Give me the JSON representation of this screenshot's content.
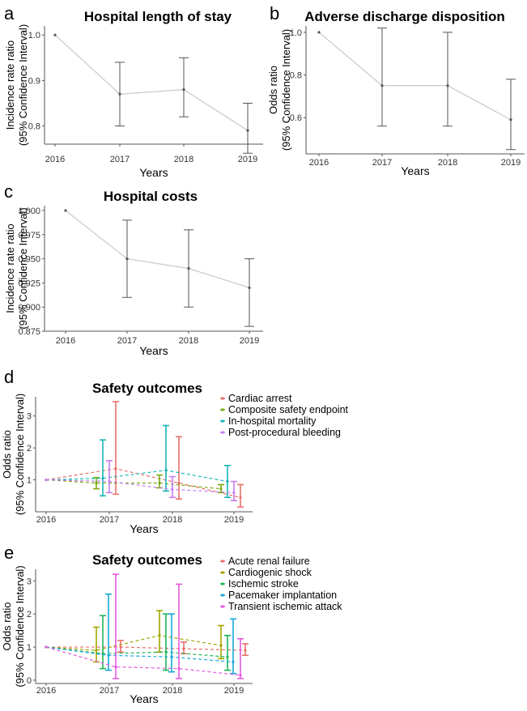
{
  "chart_data": [
    {
      "panel": "a",
      "type": "line",
      "title": "Hospital length of stay",
      "xlabel": "Years",
      "ylabel": [
        "Incidence rate ratio",
        "(95% Confidence Interval)"
      ],
      "categories": [
        "2016",
        "2017",
        "2018",
        "2019"
      ],
      "ylim": [
        0.76,
        1.02
      ],
      "yticks": [
        0.8,
        0.9,
        1.0
      ],
      "ytick_labels": [
        "0.8",
        "0.9",
        "1.0"
      ],
      "series": [
        {
          "values": [
            1.0,
            0.87,
            0.88,
            0.79
          ],
          "lower": [
            null,
            0.8,
            0.82,
            0.74
          ],
          "upper": [
            null,
            0.94,
            0.95,
            0.85
          ],
          "color": "#555555",
          "line_color": "#c8c8c8",
          "dashed": false
        }
      ]
    },
    {
      "panel": "b",
      "type": "line",
      "title": "Adverse discharge disposition",
      "xlabel": "Years",
      "ylabel": [
        "Odds ratio",
        "(95% Confidence Interval)"
      ],
      "categories": [
        "2016",
        "2017",
        "2018",
        "2019"
      ],
      "ylim": [
        0.43,
        1.03
      ],
      "yticks": [
        0.6,
        0.8,
        1.0
      ],
      "ytick_labels": [
        "0.6",
        "0.8",
        "1.0"
      ],
      "series": [
        {
          "values": [
            1.0,
            0.75,
            0.75,
            0.59
          ],
          "lower": [
            null,
            0.56,
            0.56,
            0.45
          ],
          "upper": [
            null,
            1.02,
            1.0,
            0.78
          ],
          "color": "#555555",
          "line_color": "#c8c8c8",
          "dashed": false
        }
      ]
    },
    {
      "panel": "c",
      "type": "line",
      "title": "Hospital costs",
      "xlabel": "Years",
      "ylabel": [
        "Incidence rate ratio",
        "(95% Confidence Interval)"
      ],
      "categories": [
        "2016",
        "2017",
        "2018",
        "2019"
      ],
      "ylim": [
        0.875,
        1.005
      ],
      "yticks": [
        0.875,
        0.9,
        0.925,
        0.95,
        0.975,
        1.0
      ],
      "ytick_labels": [
        "0.875",
        "0.900",
        "0.925",
        "0.950",
        "0.975",
        "1.000"
      ],
      "series": [
        {
          "values": [
            1.0,
            0.95,
            0.94,
            0.92
          ],
          "lower": [
            null,
            0.91,
            0.9,
            0.88
          ],
          "upper": [
            null,
            0.99,
            0.98,
            0.95
          ],
          "color": "#555555",
          "line_color": "#c8c8c8",
          "dashed": false
        }
      ]
    },
    {
      "panel": "d",
      "type": "line",
      "title": "Safety outcomes",
      "xlabel": "Years",
      "ylabel": [
        "Odds ratio",
        "(95% Confidence Interval)"
      ],
      "categories": [
        "2016",
        "2017",
        "2018",
        "2019"
      ],
      "ylim": [
        0.0,
        3.6
      ],
      "yticks": [
        1,
        2,
        3
      ],
      "ytick_labels": [
        "1",
        "2",
        "3"
      ],
      "legend": "top-right",
      "series": [
        {
          "name": "Cardiac arrest",
          "color": "#e8716a",
          "dashed": true,
          "values": [
            1.0,
            1.35,
            0.9,
            0.45
          ],
          "lower": [
            null,
            0.55,
            0.4,
            0.15
          ],
          "upper": [
            null,
            3.45,
            2.35,
            0.85
          ]
        },
        {
          "name": "Composite safety endpoint",
          "color": "#7aab12",
          "dashed": true,
          "values": [
            1.0,
            0.9,
            0.9,
            0.72
          ],
          "lower": [
            null,
            0.72,
            0.75,
            0.6
          ],
          "upper": [
            null,
            1.07,
            1.15,
            0.85
          ]
        },
        {
          "name": "In-hospital mortality",
          "color": "#18b4b8",
          "dashed": true,
          "values": [
            1.0,
            1.05,
            1.3,
            0.95
          ],
          "lower": [
            null,
            0.5,
            0.65,
            0.45
          ],
          "upper": [
            null,
            2.25,
            2.7,
            1.45
          ]
        },
        {
          "name": "Post-procedural bleeding",
          "color": "#c77cf0",
          "dashed": true,
          "values": [
            1.0,
            0.95,
            0.7,
            0.6
          ],
          "lower": [
            null,
            0.6,
            0.45,
            0.35
          ],
          "upper": [
            null,
            1.6,
            1.1,
            0.95
          ]
        }
      ]
    },
    {
      "panel": "e",
      "type": "line",
      "title": "Safety outcomes",
      "xlabel": "Years",
      "ylabel": [
        "Odds ratio",
        "(95% Confidence Interval)"
      ],
      "categories": [
        "2016",
        "2017",
        "2018",
        "2019"
      ],
      "ylim": [
        -0.1,
        3.35
      ],
      "yticks": [
        0,
        1,
        2,
        3
      ],
      "ytick_labels": [
        "0",
        "1",
        "2",
        "3"
      ],
      "legend": "top-right",
      "series": [
        {
          "name": "Acute renal failure",
          "color": "#e8716a",
          "dashed": true,
          "values": [
            1.0,
            1.0,
            0.95,
            0.9
          ],
          "lower": [
            null,
            0.85,
            0.8,
            0.75
          ],
          "upper": [
            null,
            1.2,
            1.15,
            1.1
          ]
        },
        {
          "name": "Cardiogenic shock",
          "color": "#a3a500",
          "dashed": true,
          "values": [
            1.0,
            0.9,
            1.35,
            1.05
          ],
          "lower": [
            null,
            0.55,
            0.85,
            0.65
          ],
          "upper": [
            null,
            1.6,
            2.1,
            1.65
          ]
        },
        {
          "name": "Ischemic stroke",
          "color": "#1fb45a",
          "dashed": true,
          "values": [
            1.0,
            0.8,
            0.85,
            0.7
          ],
          "lower": [
            null,
            0.35,
            0.3,
            0.3
          ],
          "upper": [
            null,
            1.95,
            2.0,
            1.35
          ]
        },
        {
          "name": "Pacemaker implantation",
          "color": "#18a8d8",
          "dashed": true,
          "values": [
            1.0,
            0.75,
            0.7,
            0.55
          ],
          "lower": [
            null,
            0.3,
            0.25,
            0.2
          ],
          "upper": [
            null,
            2.6,
            2.0,
            1.85
          ]
        },
        {
          "name": "Transient ischemic attack",
          "color": "#e559e0",
          "dashed": true,
          "values": [
            1.0,
            0.4,
            0.35,
            0.15
          ],
          "lower": [
            null,
            0.05,
            0.05,
            0.05
          ],
          "upper": [
            null,
            3.2,
            2.9,
            1.25
          ]
        }
      ]
    }
  ]
}
